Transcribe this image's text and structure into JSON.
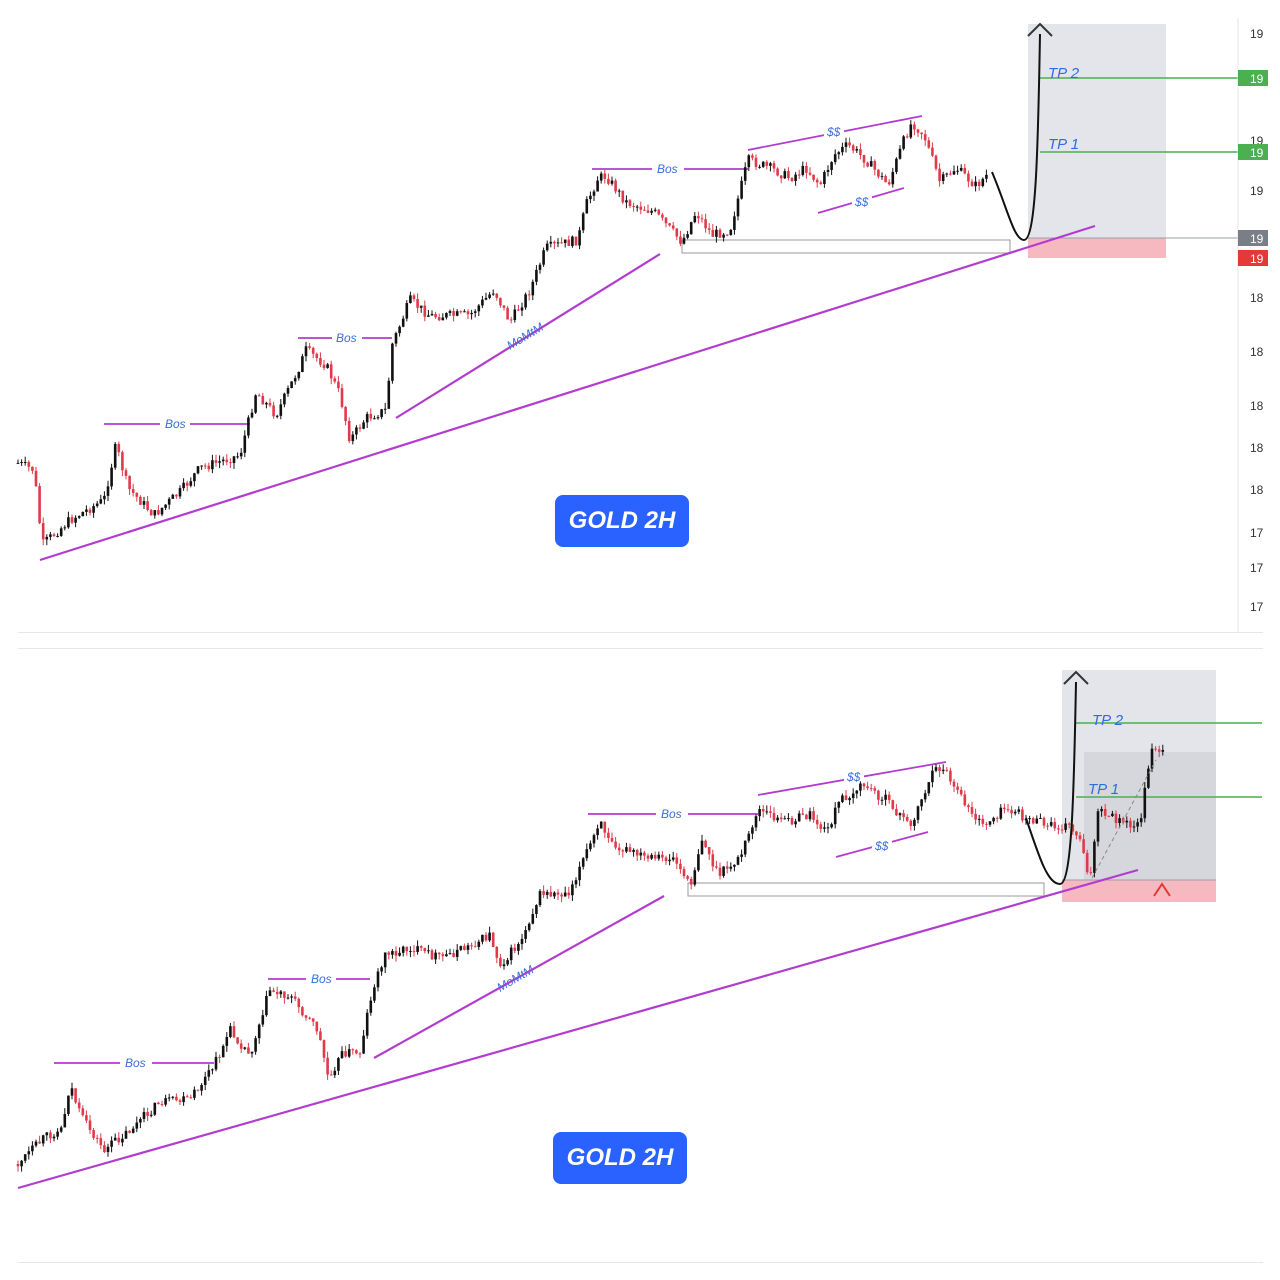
{
  "chart_data": [
    {
      "type": "candlestick",
      "title": "GOLD 2H",
      "annotations": {
        "bos": [
          "Bos",
          "Bos",
          "Bos",
          "Bos"
        ],
        "momtm": "MoMtM",
        "liquidity": [
          "$$",
          "$$"
        ],
        "targets": [
          "TP 2",
          "TP 1"
        ]
      },
      "price_axis_labels": [
        "19",
        "19",
        "19",
        "19",
        "19",
        "19",
        "19",
        "18",
        "18",
        "18",
        "18",
        "18",
        "18",
        "17",
        "17",
        "17"
      ],
      "colors": {
        "up": "#111111",
        "down": "#e03a4a",
        "trendline": "#b23ccf",
        "target_line": "#4caf50",
        "stop_zone": "#f6b9c0",
        "target_zone": "#e4e5ea",
        "badge": "#2962ff"
      }
    },
    {
      "type": "candlestick",
      "title": "GOLD 2H",
      "annotations": {
        "bos": [
          "Bos",
          "Bos",
          "Bos",
          "Bos"
        ],
        "momtm": "MoMtM",
        "liquidity": [
          "$$",
          "$$"
        ],
        "targets": [
          "TP 2",
          "TP 1"
        ]
      },
      "colors": {
        "up": "#111111",
        "down": "#e03a4a",
        "trendline": "#b23ccf",
        "target_line": "#4caf50",
        "stop_zone": "#f6b9c0",
        "target_zone": "#e4e5ea",
        "badge": "#2962ff"
      }
    }
  ]
}
